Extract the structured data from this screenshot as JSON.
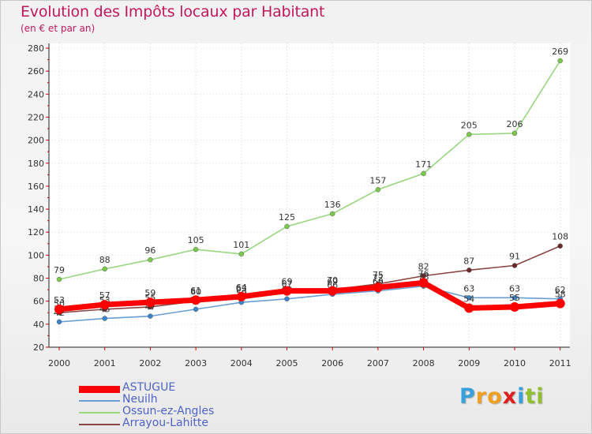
{
  "chart_data": {
    "type": "line",
    "title": "Evolution des Impôts locaux par Habitant",
    "subtitle": "(en € et par an)",
    "x": [
      "2000",
      "2001",
      "2002",
      "2003",
      "2004",
      "2005",
      "2006",
      "2007",
      "2008",
      "2009",
      "2010",
      "2011"
    ],
    "ylim": [
      20,
      280
    ],
    "yticks": [
      20,
      40,
      60,
      80,
      100,
      120,
      140,
      160,
      180,
      200,
      220,
      240,
      260,
      280
    ],
    "series": [
      {
        "name": "Ossun-ez-Angles",
        "color": "#99d67f",
        "marker": "#7ac94c",
        "values": [
          79,
          88,
          96,
          105,
          101,
          125,
          136,
          157,
          171,
          205,
          206,
          269
        ]
      },
      {
        "name": "Arrayou-Lahitte",
        "color": "#8b4545",
        "marker": "#6b2a2a",
        "values": [
          50,
          53,
          55,
          60,
          63,
          67,
          70,
          75,
          82,
          87,
          91,
          108
        ]
      },
      {
        "name": "Neuilh",
        "color": "#6a9fd4",
        "marker": "#3b84c9",
        "values": [
          42,
          45,
          47,
          53,
          59,
          62,
          66,
          69,
          73,
          63,
          63,
          62
        ]
      },
      {
        "name": "ASTUGUE",
        "color": "#ff0000",
        "marker": "#ff0000",
        "values": [
          53,
          57,
          59,
          61,
          64,
          69,
          69,
          72,
          76,
          54,
          55,
          58
        ]
      }
    ],
    "legend_order": [
      "ASTUGUE",
      "Neuilh",
      "Ossun-ez-Angles",
      "Arrayou-Lahitte"
    ]
  },
  "logo": {
    "letters": [
      "P",
      "r",
      "o",
      "x",
      "i",
      "t",
      "i"
    ],
    "colors": [
      "#3aa0dc",
      "#f0a020",
      "#f0a020",
      "#e02020",
      "#3aa0dc",
      "#90c030",
      "#90c030"
    ]
  }
}
